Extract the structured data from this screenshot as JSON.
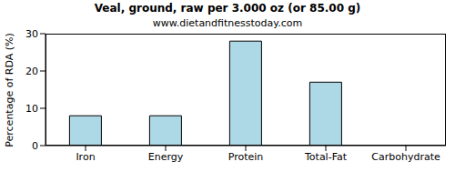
{
  "chart_data": {
    "type": "bar",
    "title": "Veal, ground, raw per 3.000 oz (or 85.00 g)",
    "subtitle": "www.dietandfitnesstoday.com",
    "y_label": "Percentage of RDA (%)",
    "categories": [
      "Iron",
      "Energy",
      "Protein",
      "Total-Fat",
      "Carbohydrate"
    ],
    "values": [
      8,
      8,
      28,
      17,
      0
    ],
    "color": "#add8e6",
    "ylim": [
      0,
      30
    ],
    "yticks": [
      0,
      10,
      20,
      30
    ],
    "grid": false
  }
}
